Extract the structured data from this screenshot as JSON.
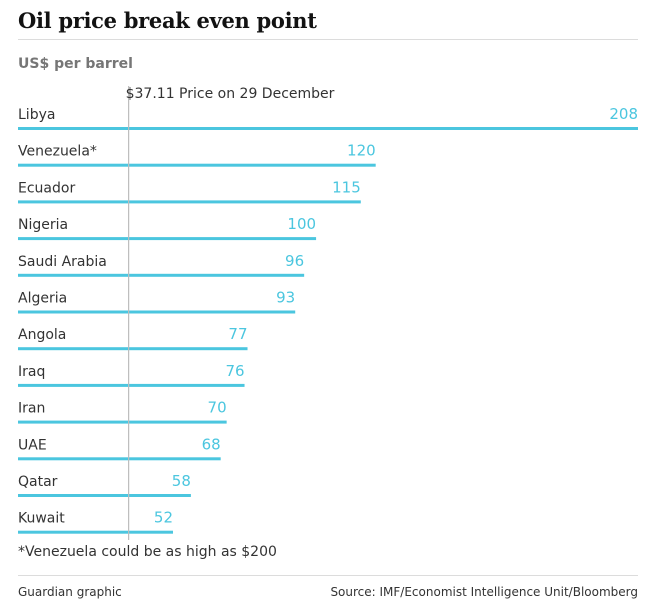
{
  "title": "Oil price break even point",
  "unit_label": "US$ per barrel",
  "footnote": "*Venezuela could be as high as $200",
  "credit": "Guardian graphic",
  "source": "Source: IMF/Economist Intelligence Unit/Bloomberg",
  "colors": {
    "bar": "#4bc6df",
    "reference_line": "#bdbdbd",
    "label": "#333333"
  },
  "chart_data": {
    "type": "bar",
    "orientation": "horizontal",
    "categories": [
      "Libya",
      "Venezuela*",
      "Ecuador",
      "Nigeria",
      "Saudi Arabia",
      "Algeria",
      "Angola",
      "Iraq",
      "Iran",
      "UAE",
      "Qatar",
      "Kuwait"
    ],
    "values": [
      208,
      120,
      115,
      100,
      96,
      93,
      77,
      76,
      70,
      68,
      58,
      52
    ],
    "value_labels": [
      "208",
      "120",
      "115",
      "100",
      "96",
      "93",
      "77",
      "76",
      "70",
      "68",
      "58",
      "52"
    ],
    "xlim": [
      0,
      208
    ],
    "reference_line": {
      "value": 37.11,
      "label": "$37.11 Price on 29 December"
    },
    "grid": false,
    "legend": "none"
  }
}
